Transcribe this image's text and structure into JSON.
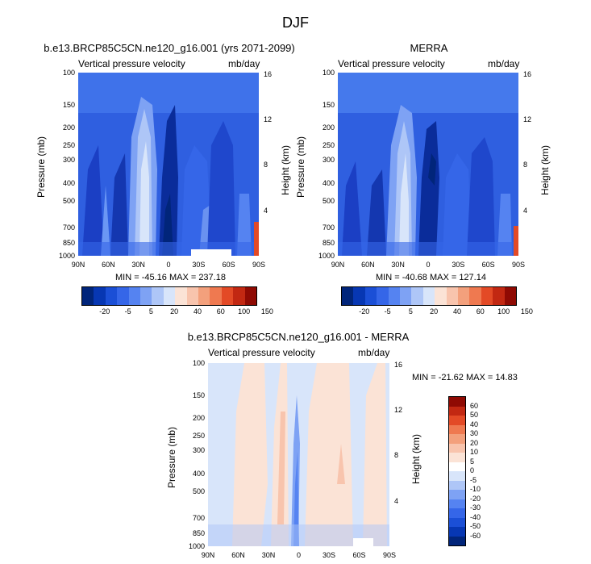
{
  "figure": {
    "title": "DJF"
  },
  "colorbar_colors": [
    "#01257a",
    "#0737b3",
    "#1b4fd6",
    "#3566e8",
    "#5583f1",
    "#7ea2f4",
    "#aec6f7",
    "#d8e5fa",
    "#fbe3d6",
    "#f8c4ad",
    "#f3a07c",
    "#ef7950",
    "#e34a26",
    "#c22812",
    "#8f0a03"
  ],
  "panels": {
    "model": {
      "title": "b.e13.BRCP85C5CN.ne120_g16.001 (yrs 2071-2099)",
      "left_subtitle": "Vertical pressure velocity",
      "right_subtitle": "mb/day",
      "stats": "MIN = -45.16  MAX = 237.18",
      "colorbar_labels": [
        "-20",
        "-5",
        "5",
        "20",
        "40",
        "60",
        "100",
        "150"
      ]
    },
    "obs": {
      "title": "MERRA",
      "left_subtitle": "Vertical pressure velocity",
      "right_subtitle": "mb/day",
      "stats": "MIN = -40.68  MAX = 127.14",
      "colorbar_labels": [
        "-20",
        "-5",
        "5",
        "20",
        "40",
        "60",
        "100",
        "150"
      ]
    },
    "diff": {
      "title": "b.e13.BRCP85C5CN.ne120_g16.001 - MERRA",
      "left_subtitle": "Vertical pressure velocity",
      "right_subtitle": "mb/day",
      "stats": "MIN = -21.62  MAX = 14.83",
      "colorbar_labels": [
        "60",
        "50",
        "40",
        "30",
        "20",
        "10",
        "5",
        "0",
        "-5",
        "-10",
        "-20",
        "-30",
        "-40",
        "-50",
        "-60"
      ],
      "colorbar_colors": [
        "#8f0a03",
        "#c22812",
        "#e34a26",
        "#ef7950",
        "#f3a07c",
        "#f8c4ad",
        "#fbe3d6",
        "#ffffff",
        "#d8e5fa",
        "#aec6f7",
        "#7ea2f4",
        "#5583f1",
        "#3566e8",
        "#1b4fd6",
        "#0737b3",
        "#01257a"
      ]
    }
  },
  "axes": {
    "ylabel": "Pressure (mb)",
    "y2label": "Height (km)",
    "pressure_ticks": [
      "100",
      "150",
      "200",
      "250",
      "300",
      "400",
      "500",
      "700",
      "850",
      "1000"
    ],
    "height_ticks": [
      "16",
      "12",
      "8",
      "4"
    ],
    "lat_ticks": [
      "90N",
      "60N",
      "30N",
      "0",
      "30S",
      "60S",
      "90S"
    ]
  },
  "chart_data": [
    {
      "type": "heatmap",
      "title": "b.e13.BRCP85C5CN.ne120_g16.001 (yrs 2071-2099)",
      "xlabel": "",
      "ylabel": "Pressure (mb)",
      "y2label": "Height (km)",
      "xlim": [
        90,
        -90
      ],
      "ylim": [
        1000,
        100
      ],
      "y_scale": "log",
      "min": -45.16,
      "max": 237.18,
      "levels": [
        -20,
        -5,
        5,
        20,
        40,
        60,
        100,
        150
      ]
    },
    {
      "type": "heatmap",
      "title": "MERRA",
      "xlabel": "",
      "ylabel": "Pressure (mb)",
      "y2label": "Height (km)",
      "xlim": [
        90,
        -90
      ],
      "ylim": [
        1000,
        100
      ],
      "y_scale": "log",
      "min": -40.68,
      "max": 127.14,
      "levels": [
        -20,
        -5,
        5,
        20,
        40,
        60,
        100,
        150
      ]
    },
    {
      "type": "heatmap",
      "title": "b.e13.BRCP85C5CN.ne120_g16.001 - MERRA",
      "xlabel": "",
      "ylabel": "Pressure (mb)",
      "y2label": "Height (km)",
      "xlim": [
        90,
        -90
      ],
      "ylim": [
        1000,
        100
      ],
      "y_scale": "log",
      "min": -21.62,
      "max": 14.83,
      "levels": [
        -60,
        -50,
        -40,
        -30,
        -20,
        -10,
        -5,
        0,
        5,
        10,
        20,
        30,
        40,
        50,
        60
      ]
    }
  ]
}
